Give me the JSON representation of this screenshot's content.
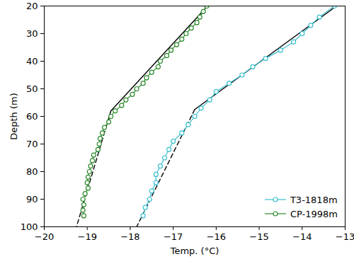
{
  "chart_data": {
    "type": "line",
    "x_label": "Temp. (°C)",
    "y_label": "Depth (m)",
    "xlim": [
      -20,
      -13
    ],
    "xticks": [
      {
        "value": -20,
        "label": "−20"
      },
      {
        "value": -19,
        "label": "−19"
      },
      {
        "value": -18,
        "label": "−18"
      },
      {
        "value": -17,
        "label": "−17"
      },
      {
        "value": -16,
        "label": "−16"
      },
      {
        "value": -15,
        "label": "−15"
      },
      {
        "value": -14,
        "label": "−14"
      },
      {
        "value": -13,
        "label": "−13"
      }
    ],
    "ylim": [
      100,
      20
    ],
    "yticks": [
      20,
      30,
      40,
      50,
      60,
      70,
      80,
      90,
      100
    ],
    "grid": false,
    "legend": "lower right",
    "series": [
      {
        "name": "T3-1818m",
        "color": "#3cc0d0",
        "marker": "circle",
        "line_style": "solid",
        "x": [
          -13.25,
          -13.6,
          -13.8,
          -14.0,
          -14.2,
          -14.5,
          -14.85,
          -15.15,
          -15.4,
          -15.7,
          -16.0,
          -16.15,
          -16.35,
          -16.5,
          -16.65,
          -16.8,
          -17.0,
          -17.1,
          -17.2,
          -17.3,
          -17.4,
          -17.4,
          -17.5,
          -17.55,
          -17.65,
          -17.7
        ],
        "y": [
          20,
          24,
          27,
          30,
          33,
          36,
          39,
          42,
          45,
          48,
          51,
          54,
          57,
          60,
          63,
          66,
          69,
          72,
          75,
          78,
          81,
          84,
          87,
          90,
          93,
          96
        ]
      },
      {
        "name": "CP-1998m",
        "color": "#2e8b2e",
        "marker": "circle",
        "line_style": "solid",
        "x": [
          -16.22,
          -16.3,
          -16.38,
          -16.45,
          -16.58,
          -16.7,
          -16.8,
          -16.92,
          -17.05,
          -17.15,
          -17.3,
          -17.35,
          -17.5,
          -17.62,
          -17.7,
          -17.85,
          -17.95,
          -18.1,
          -18.2,
          -18.35,
          -18.45,
          -18.5,
          -18.6,
          -18.65,
          -18.7,
          -18.72,
          -18.75,
          -18.85,
          -18.88,
          -18.92,
          -18.95,
          -18.98,
          -19.0,
          -18.98,
          -19.05,
          -19.1,
          -19.08,
          -19.1,
          -19.08
        ],
        "y": [
          20,
          22,
          24,
          26,
          28,
          30,
          32,
          34,
          36,
          38,
          40,
          42,
          44,
          46,
          48,
          50,
          52,
          54,
          56,
          58,
          60,
          62,
          64,
          66,
          68,
          70,
          72,
          74,
          76,
          78,
          80,
          82,
          84,
          86,
          88,
          90,
          92,
          94,
          96
        ]
      }
    ],
    "fits": [
      {
        "color": "#000000",
        "line_style": "solid",
        "x": [
          -13.2,
          -16.5
        ],
        "y": [
          20,
          57.5
        ]
      },
      {
        "color": "#000000",
        "line_style": "dashed",
        "x": [
          -16.5,
          -17.85
        ],
        "y": [
          57.5,
          100
        ]
      },
      {
        "color": "#000000",
        "line_style": "solid",
        "x": [
          -16.2,
          -18.45
        ],
        "y": [
          20,
          58
        ]
      },
      {
        "color": "#000000",
        "line_style": "dashed",
        "x": [
          -18.45,
          -19.25
        ],
        "y": [
          58,
          100
        ]
      }
    ]
  }
}
